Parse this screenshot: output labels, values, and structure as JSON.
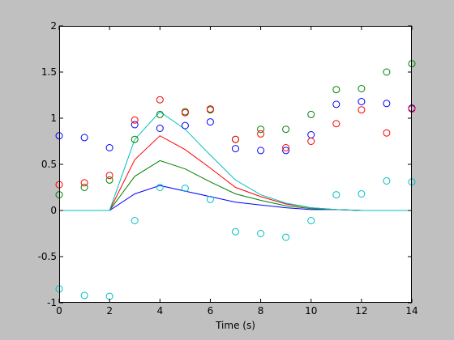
{
  "chart_data": {
    "type": "line",
    "xlabel": "Time (s)",
    "ylabel": "",
    "title": "",
    "xlim": [
      0,
      14
    ],
    "ylim": [
      -1,
      2
    ],
    "xticks": [
      0,
      2,
      4,
      6,
      8,
      10,
      12,
      14
    ],
    "yticks": [
      -1,
      -0.5,
      0,
      0.5,
      1,
      1.5,
      2
    ],
    "grid": false,
    "legend": "none",
    "series": [
      {
        "kind": "line",
        "color": "#0000ff",
        "x": [
          0,
          1,
          2,
          3,
          4,
          5,
          6,
          7,
          8,
          9,
          10,
          11,
          12,
          13,
          14
        ],
        "y": [
          0,
          0,
          0,
          0.18,
          0.27,
          0.21,
          0.15,
          0.09,
          0.06,
          0.03,
          0.01,
          0.01,
          0.0,
          0.0,
          0.0
        ]
      },
      {
        "kind": "line",
        "color": "#008000",
        "x": [
          0,
          1,
          2,
          3,
          4,
          5,
          6,
          7,
          8,
          9,
          10,
          11,
          12,
          13,
          14
        ],
        "y": [
          0,
          0,
          0,
          0.37,
          0.54,
          0.45,
          0.31,
          0.18,
          0.11,
          0.05,
          0.02,
          0.01,
          0.0,
          0.0,
          0.0
        ]
      },
      {
        "kind": "line",
        "color": "#ff0000",
        "x": [
          0,
          1,
          2,
          3,
          4,
          5,
          6,
          7,
          8,
          9,
          10,
          11,
          12,
          13,
          14
        ],
        "y": [
          0,
          0,
          0,
          0.55,
          0.81,
          0.66,
          0.46,
          0.25,
          0.15,
          0.07,
          0.03,
          0.01,
          0.0,
          0.0,
          0.0
        ]
      },
      {
        "kind": "line",
        "color": "#00bfbf",
        "x": [
          0,
          1,
          2,
          3,
          4,
          5,
          6,
          7,
          8,
          9,
          10,
          11,
          12,
          13,
          14
        ],
        "y": [
          0,
          0,
          0,
          0.77,
          1.07,
          0.88,
          0.6,
          0.33,
          0.17,
          0.08,
          0.03,
          0.01,
          0.0,
          0.0,
          0.0
        ]
      },
      {
        "kind": "markers",
        "color": "#0000ff",
        "x": [
          0,
          1,
          2,
          3,
          4,
          5,
          6,
          7,
          8,
          9,
          10,
          11,
          12,
          13,
          14
        ],
        "y": [
          0.81,
          0.79,
          0.68,
          0.93,
          0.89,
          0.92,
          0.96,
          0.67,
          0.65,
          0.65,
          0.82,
          1.15,
          1.18,
          1.16,
          1.11
        ]
      },
      {
        "kind": "markers",
        "color": "#008000",
        "x": [
          0,
          1,
          2,
          3,
          4,
          5,
          6,
          7,
          8,
          9,
          10,
          11,
          12,
          13,
          14
        ],
        "y": [
          0.17,
          0.25,
          0.33,
          0.77,
          1.04,
          1.07,
          1.09,
          0.77,
          0.88,
          0.88,
          1.04,
          1.31,
          1.32,
          1.5,
          1.59
        ]
      },
      {
        "kind": "markers",
        "color": "#ff0000",
        "x": [
          0,
          1,
          2,
          3,
          4,
          5,
          6,
          7,
          8,
          9,
          10,
          11,
          12,
          13,
          14
        ],
        "y": [
          0.28,
          0.3,
          0.38,
          0.98,
          1.2,
          1.06,
          1.1,
          0.77,
          0.83,
          0.68,
          0.75,
          0.94,
          1.09,
          0.84,
          1.1
        ]
      },
      {
        "kind": "markers",
        "color": "#00bfbf",
        "x": [
          0,
          1,
          2,
          3,
          4,
          5,
          6,
          7,
          8,
          9,
          10,
          11,
          12,
          13,
          14
        ],
        "y": [
          -0.85,
          -0.92,
          -0.93,
          -0.11,
          0.25,
          0.24,
          0.12,
          -0.23,
          -0.25,
          -0.29,
          -0.11,
          0.17,
          0.18,
          0.32,
          0.31
        ]
      }
    ]
  }
}
